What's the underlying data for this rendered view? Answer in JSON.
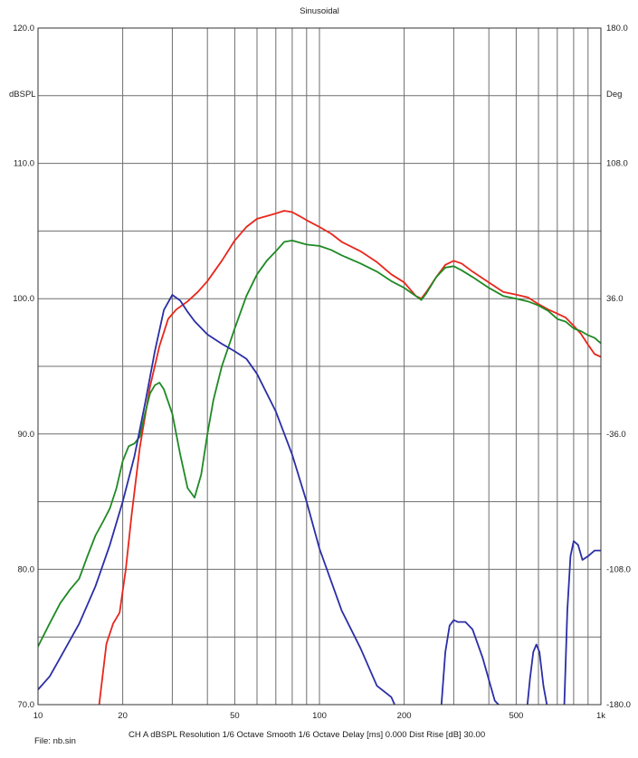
{
  "chart_data": {
    "type": "line",
    "title": "Sinusoidal",
    "ylabel_left": "dBSPL",
    "ylabel_right": "Deg",
    "xscale": "log",
    "xlim": [
      10,
      1000
    ],
    "ylim_left": [
      70,
      120
    ],
    "ylim_right": [
      -180,
      180
    ],
    "x_tick_values": [
      10,
      20,
      50,
      100,
      200,
      500,
      1000
    ],
    "x_tick_labels": [
      "10",
      "20",
      "50",
      "100",
      "200",
      "500",
      "1k"
    ],
    "y_left_ticks": [
      "70.0",
      "80.0",
      "90.0",
      "100.0",
      "110.0",
      "120.0"
    ],
    "y_left_tick_values": [
      70,
      80,
      90,
      100,
      110,
      120
    ],
    "y_right_ticks": [
      "-180.0",
      "-108.0",
      "-36.0",
      "36.0",
      "108.0",
      "180.0"
    ],
    "grid": true,
    "series": [
      {
        "color": "#e8261c",
        "axis": "left",
        "x": [
          16.5,
          17.5,
          18.5,
          19.5,
          20.5,
          21.5,
          23,
          25,
          27,
          29,
          31,
          34,
          37,
          40,
          45,
          50,
          55,
          60,
          65,
          70,
          75,
          80,
          85,
          90,
          100,
          110,
          120,
          140,
          160,
          180,
          200,
          220,
          230,
          240,
          260,
          280,
          300,
          320,
          350,
          400,
          450,
          500,
          550,
          600,
          650,
          700,
          750,
          800,
          850,
          900,
          950,
          1000
        ],
        "y": [
          70,
          74.5,
          76,
          76.8,
          80,
          84,
          89,
          93.5,
          96.5,
          98.5,
          99.2,
          99.8,
          100.5,
          101.3,
          102.8,
          104.3,
          105.3,
          105.9,
          106.1,
          106.3,
          106.5,
          106.4,
          106.1,
          105.8,
          105.3,
          104.8,
          104.2,
          103.5,
          102.7,
          101.8,
          101.2,
          100.2,
          100.0,
          100.5,
          101.6,
          102.5,
          102.8,
          102.6,
          102.0,
          101.2,
          100.5,
          100.3,
          100.1,
          99.6,
          99.2,
          98.9,
          98.6,
          98.0,
          97.4,
          96.6,
          95.9,
          95.7
        ]
      },
      {
        "color": "#1e8a24",
        "axis": "left",
        "x": [
          10,
          11,
          12,
          13,
          14,
          15,
          16,
          17,
          18,
          19,
          20,
          21,
          22,
          23,
          24,
          25,
          26,
          27,
          28,
          30,
          32,
          34,
          36,
          38,
          40,
          42,
          45,
          50,
          55,
          60,
          65,
          70,
          75,
          80,
          90,
          100,
          110,
          120,
          140,
          160,
          180,
          200,
          220,
          230,
          240,
          260,
          280,
          300,
          320,
          350,
          400,
          450,
          500,
          550,
          600,
          650,
          700,
          750,
          800,
          850,
          900,
          950,
          1000
        ],
        "y": [
          74.3,
          76,
          77.5,
          78.5,
          79.3,
          81,
          82.5,
          83.5,
          84.5,
          86,
          88,
          89.1,
          89.3,
          89.8,
          91.5,
          93,
          93.6,
          93.8,
          93.3,
          91.5,
          88.5,
          86,
          85.3,
          87,
          90,
          92.5,
          95,
          97.8,
          100.2,
          101.8,
          102.8,
          103.5,
          104.2,
          104.3,
          104,
          103.9,
          103.6,
          103.2,
          102.6,
          102,
          101.3,
          100.8,
          100.2,
          99.9,
          100.4,
          101.6,
          102.3,
          102.4,
          102.1,
          101.6,
          100.8,
          100.2,
          100.0,
          99.8,
          99.5,
          99.1,
          98.5,
          98.3,
          97.8,
          97.6,
          97.3,
          97.1,
          96.7
        ]
      },
      {
        "color": "#2b2ea6",
        "axis": "right",
        "x": [
          10,
          11,
          12,
          14,
          16,
          18,
          20,
          22,
          24,
          26,
          28,
          30,
          32,
          34,
          36,
          40,
          45,
          50,
          55,
          60,
          70,
          80,
          90,
          100,
          120,
          140,
          160,
          180,
          190,
          200,
          210
        ],
        "y": [
          -172,
          -165,
          -155,
          -137,
          -117,
          -95,
          -72,
          -48,
          -20,
          8,
          30,
          38,
          35,
          29,
          24,
          17,
          12,
          8,
          4,
          -4,
          -24,
          -47,
          -72,
          -97,
          -130,
          -150,
          -170,
          -176,
          -184,
          -184,
          -184
        ]
      },
      {
        "color": "#2b2ea6",
        "axis": "right",
        "x": [
          270,
          280,
          290,
          300,
          310,
          330,
          350,
          380,
          420,
          460
        ],
        "y": [
          -184,
          -152,
          -138,
          -135,
          -136,
          -136,
          -140,
          -155,
          -178,
          -184
        ]
      },
      {
        "color": "#2b2ea6",
        "axis": "right",
        "x": [
          545,
          560,
          575,
          590,
          605,
          625,
          650
        ],
        "y": [
          -184,
          -166,
          -152,
          -148,
          -152,
          -170,
          -184
        ]
      },
      {
        "color": "#2b2ea6",
        "axis": "right",
        "x": [
          740,
          760,
          780,
          800,
          830,
          860,
          900,
          950,
          1000
        ],
        "y": [
          -184,
          -130,
          -101,
          -93,
          -95,
          -103,
          -101,
          -98,
          -98
        ]
      }
    ]
  },
  "footer": {
    "file": "File: nb.sin",
    "settings": "CH A  dBSPL  Resolution 1/6 Octave  Smooth 1/6 Octave  Delay [ms] 0.000  Dist Rise [dB] 30.00"
  }
}
